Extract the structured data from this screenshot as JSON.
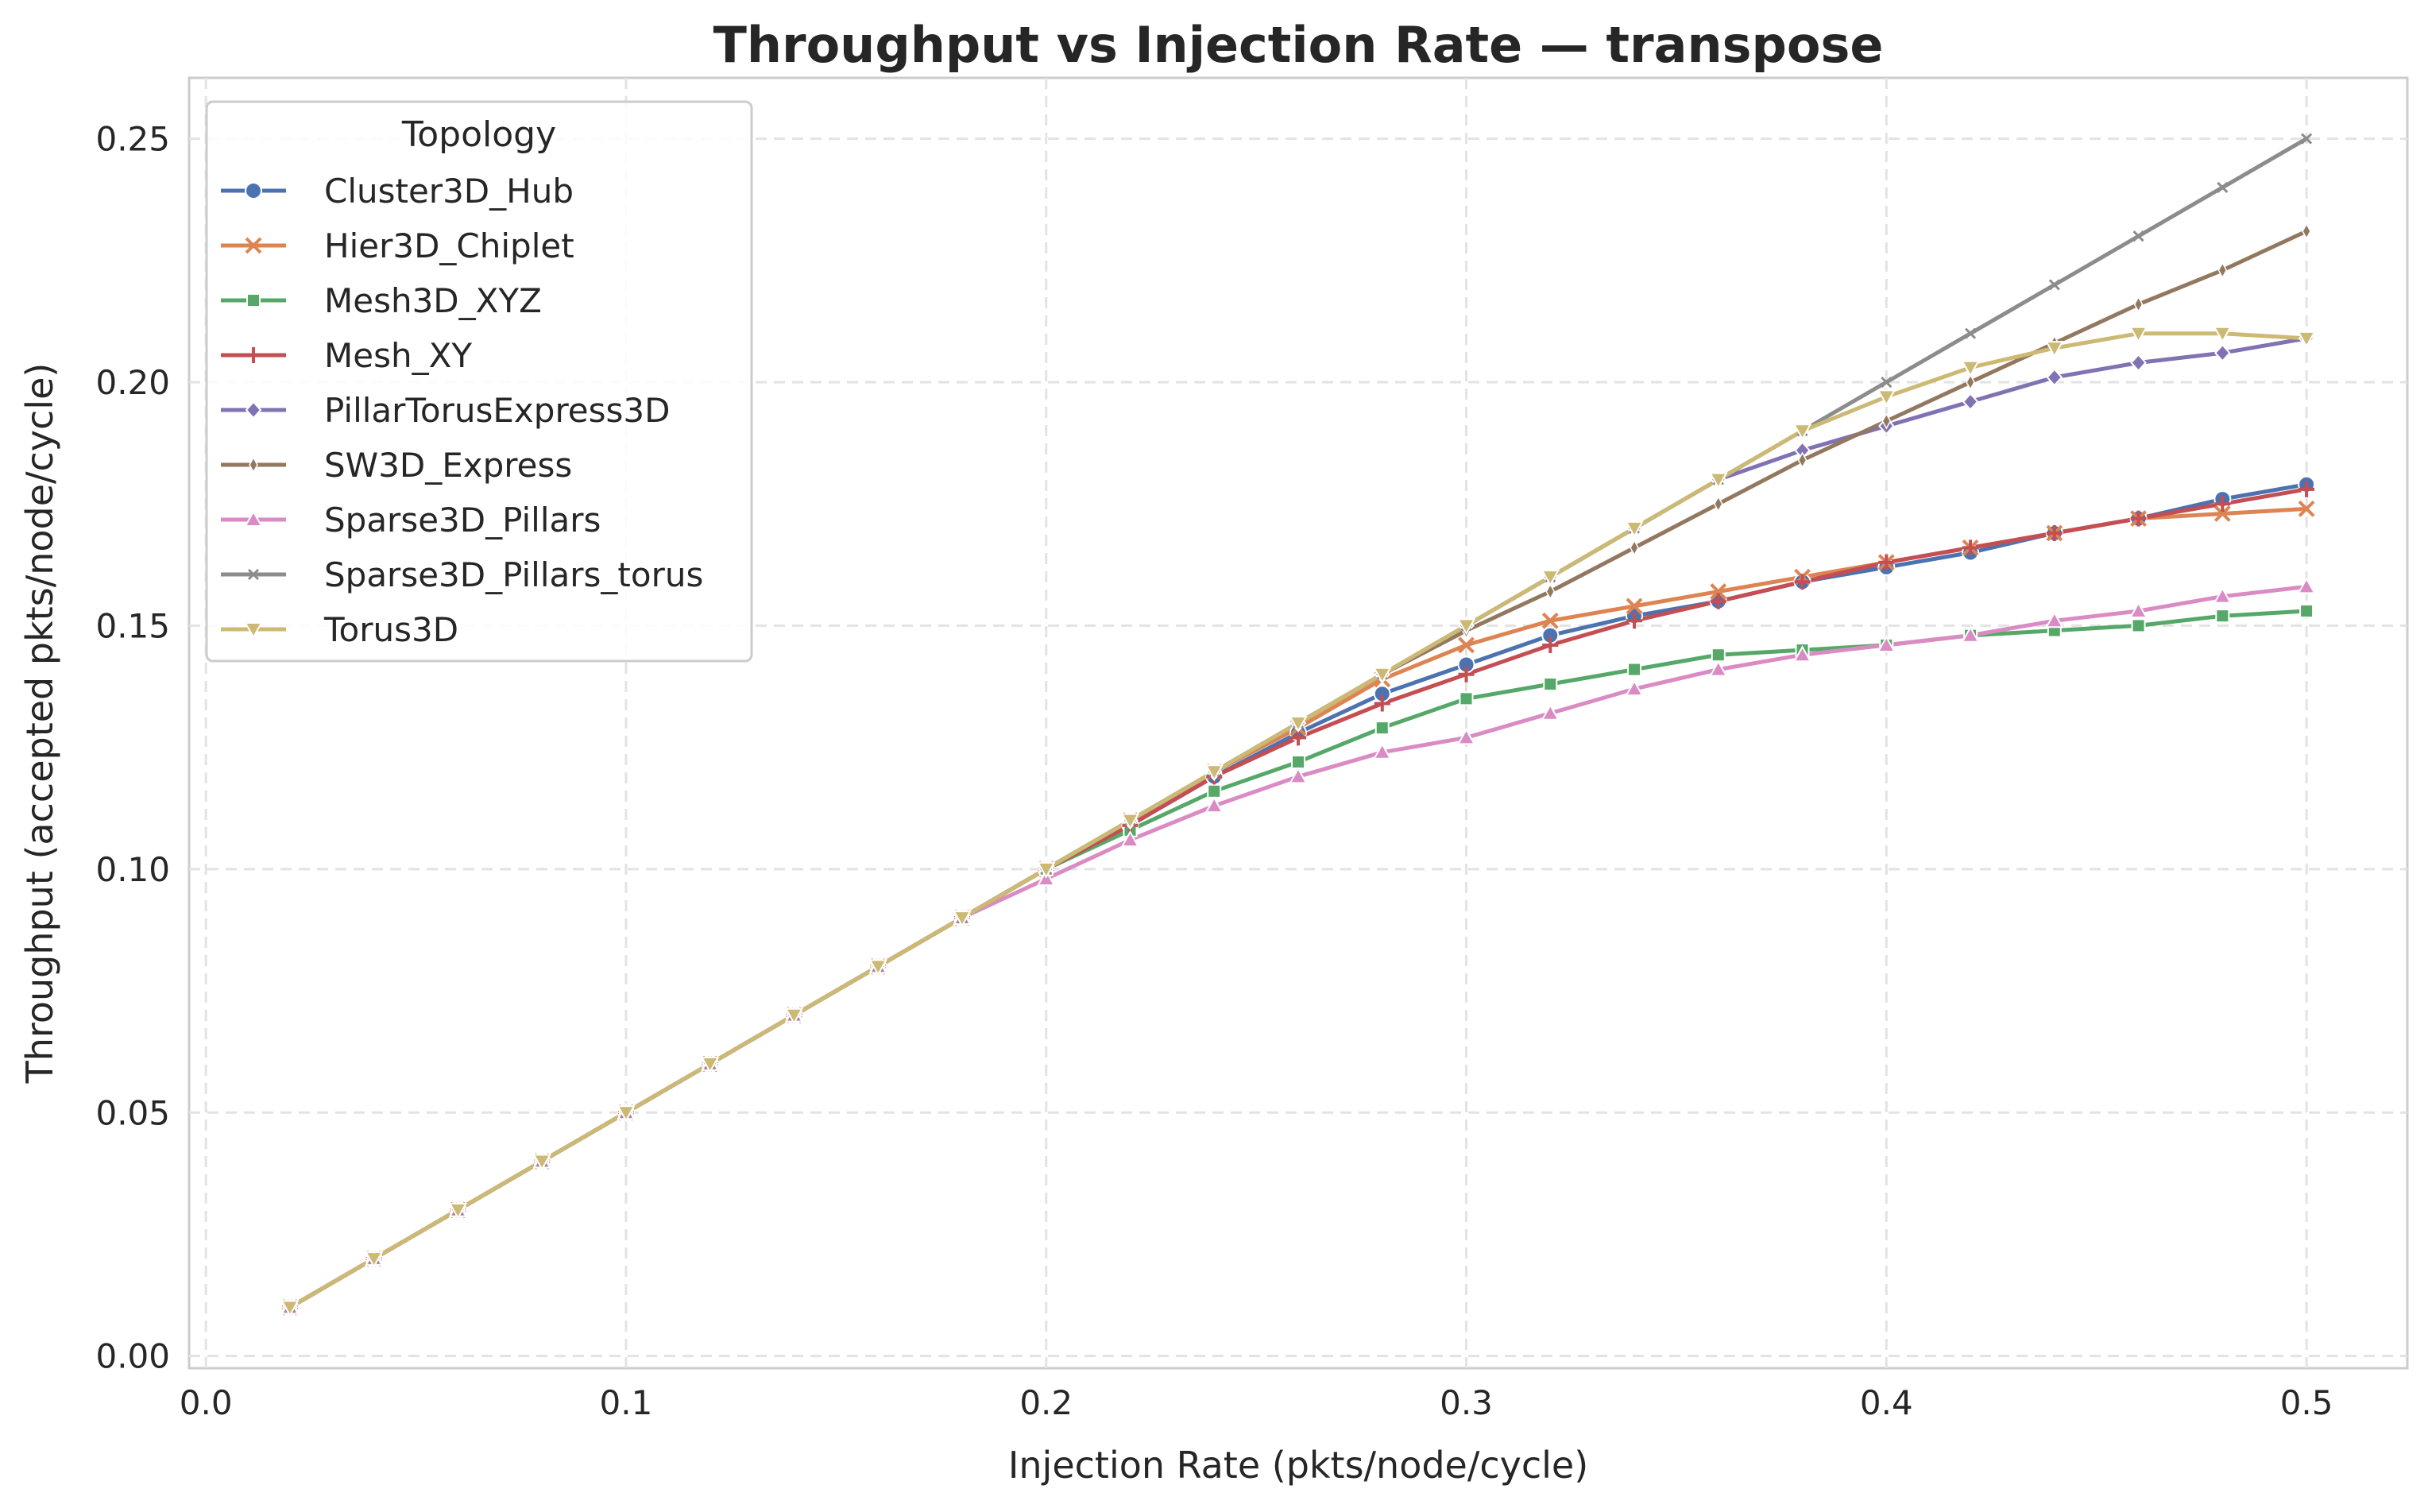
{
  "chart_data": {
    "type": "line",
    "title": "Throughput vs Injection Rate — transpose",
    "xlabel": "Injection Rate (pkts/node/cycle)",
    "ylabel": "Throughput (accepted pkts/node/cycle)",
    "xlim": [
      -0.004,
      0.524
    ],
    "ylim": [
      -0.0025,
      0.2625
    ],
    "xticks": [
      "0.0",
      "0.1",
      "0.2",
      "0.3",
      "0.4",
      "0.5"
    ],
    "yticks": [
      "0.00",
      "0.05",
      "0.10",
      "0.15",
      "0.20",
      "0.25"
    ],
    "grid": true,
    "legend": {
      "title": "Topology",
      "placement": "top-left"
    },
    "x": [
      0.02,
      0.04,
      0.06,
      0.08,
      0.1,
      0.12,
      0.14,
      0.16,
      0.18,
      0.2,
      0.22,
      0.24,
      0.26,
      0.28,
      0.3,
      0.32,
      0.34,
      0.36,
      0.38,
      0.4,
      0.42,
      0.44,
      0.46,
      0.48,
      0.5
    ],
    "series": [
      {
        "name": "Cluster3D_Hub",
        "color": "#4c72b0",
        "marker": "circle",
        "values": [
          0.01,
          0.02,
          0.03,
          0.04,
          0.05,
          0.06,
          0.07,
          0.08,
          0.09,
          0.1,
          0.109,
          0.119,
          0.128,
          0.136,
          0.142,
          0.148,
          0.152,
          0.155,
          0.159,
          0.162,
          0.165,
          0.169,
          0.172,
          0.176,
          0.179
        ]
      },
      {
        "name": "Hier3D_Chiplet",
        "color": "#dd8452",
        "marker": "x",
        "values": [
          0.01,
          0.02,
          0.03,
          0.04,
          0.05,
          0.06,
          0.07,
          0.08,
          0.09,
          0.1,
          0.11,
          0.12,
          0.129,
          0.139,
          0.146,
          0.151,
          0.154,
          0.157,
          0.16,
          0.163,
          0.166,
          0.169,
          0.172,
          0.173,
          0.174
        ]
      },
      {
        "name": "Mesh3D_XYZ",
        "color": "#55a868",
        "marker": "square",
        "values": [
          0.01,
          0.02,
          0.03,
          0.04,
          0.05,
          0.06,
          0.07,
          0.08,
          0.09,
          0.1,
          0.108,
          0.116,
          0.122,
          0.129,
          0.135,
          0.138,
          0.141,
          0.144,
          0.145,
          0.146,
          0.148,
          0.149,
          0.15,
          0.152,
          0.153
        ]
      },
      {
        "name": "Mesh_XY",
        "color": "#c44e52",
        "marker": "plus",
        "values": [
          0.01,
          0.02,
          0.03,
          0.04,
          0.05,
          0.06,
          0.07,
          0.08,
          0.09,
          0.1,
          0.109,
          0.119,
          0.127,
          0.134,
          0.14,
          0.146,
          0.151,
          0.155,
          0.159,
          0.163,
          0.166,
          0.169,
          0.172,
          0.175,
          0.178
        ]
      },
      {
        "name": "PillarTorusExpress3D",
        "color": "#8172b3",
        "marker": "diamond",
        "values": [
          0.01,
          0.02,
          0.03,
          0.04,
          0.05,
          0.06,
          0.07,
          0.08,
          0.09,
          0.1,
          0.11,
          0.12,
          0.13,
          0.14,
          0.15,
          0.16,
          0.17,
          0.18,
          0.186,
          0.191,
          0.196,
          0.201,
          0.204,
          0.206,
          0.209
        ]
      },
      {
        "name": "SW3D_Express",
        "color": "#937860",
        "marker": "thin-diamond",
        "values": [
          0.01,
          0.02,
          0.03,
          0.04,
          0.05,
          0.06,
          0.07,
          0.08,
          0.09,
          0.1,
          0.11,
          0.12,
          0.13,
          0.14,
          0.149,
          0.157,
          0.166,
          0.175,
          0.184,
          0.192,
          0.2,
          0.208,
          0.216,
          0.223,
          0.231
        ]
      },
      {
        "name": "Sparse3D_Pillars",
        "color": "#da8bc3",
        "marker": "triangle-up",
        "values": [
          0.01,
          0.02,
          0.03,
          0.04,
          0.05,
          0.06,
          0.07,
          0.08,
          0.09,
          0.098,
          0.106,
          0.113,
          0.119,
          0.124,
          0.127,
          0.132,
          0.137,
          0.141,
          0.144,
          0.146,
          0.148,
          0.151,
          0.153,
          0.156,
          0.158
        ]
      },
      {
        "name": "Sparse3D_Pillars_torus",
        "color": "#8c8c8c",
        "marker": "small-x",
        "values": [
          0.01,
          0.02,
          0.03,
          0.04,
          0.05,
          0.06,
          0.07,
          0.08,
          0.09,
          0.1,
          0.11,
          0.12,
          0.13,
          0.14,
          0.15,
          0.16,
          0.17,
          0.18,
          0.19,
          0.2,
          0.21,
          0.22,
          0.23,
          0.24,
          0.25
        ]
      },
      {
        "name": "Torus3D",
        "color": "#ccb974",
        "marker": "triangle-down",
        "values": [
          0.01,
          0.02,
          0.03,
          0.04,
          0.05,
          0.06,
          0.07,
          0.08,
          0.09,
          0.1,
          0.11,
          0.12,
          0.13,
          0.14,
          0.15,
          0.16,
          0.17,
          0.18,
          0.19,
          0.197,
          0.203,
          0.207,
          0.21,
          0.21,
          0.209
        ]
      }
    ]
  }
}
